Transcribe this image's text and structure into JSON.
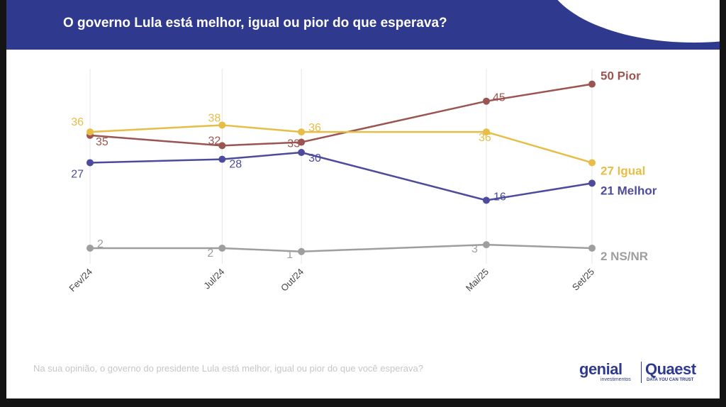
{
  "header": {
    "title": "O governo Lula está melhor, igual ou pior do que esperava?",
    "color": "#2f3a8f"
  },
  "chart_data": {
    "type": "line",
    "categories": [
      "Fev/24",
      "Jul/24",
      "Out/24",
      "Mai/25",
      "Set/25"
    ],
    "x": [
      "2024-02",
      "2024-07",
      "2024-10",
      "2025-05",
      "2025-09"
    ],
    "ylim": [
      0,
      60
    ],
    "grid": "vertical",
    "series": [
      {
        "name": "Pior",
        "end_label": "50 Pior",
        "color": "#9b5551",
        "values": [
          35,
          32,
          33,
          45,
          50
        ]
      },
      {
        "name": "Igual",
        "end_label": "27 Igual",
        "color": "#e6bd46",
        "values": [
          36,
          38,
          36,
          36,
          27
        ]
      },
      {
        "name": "Melhor",
        "end_label": "21 Melhor",
        "color": "#4d4b9c",
        "values": [
          27,
          28,
          30,
          16,
          21
        ]
      },
      {
        "name": "NS/NR",
        "end_label": "2 NS/NR",
        "color": "#9e9e9e",
        "values": [
          2,
          2,
          1,
          3,
          2
        ]
      }
    ]
  },
  "footer": {
    "question": "Na sua opinião, o governo do presidente Lula está melhor, igual ou pior do que você esperava?"
  },
  "logos": {
    "genial": "genial",
    "genial_sub": "investimentos",
    "quaest": "Quaest",
    "quaest_tagline": "DATA YOU CAN TRUST"
  }
}
